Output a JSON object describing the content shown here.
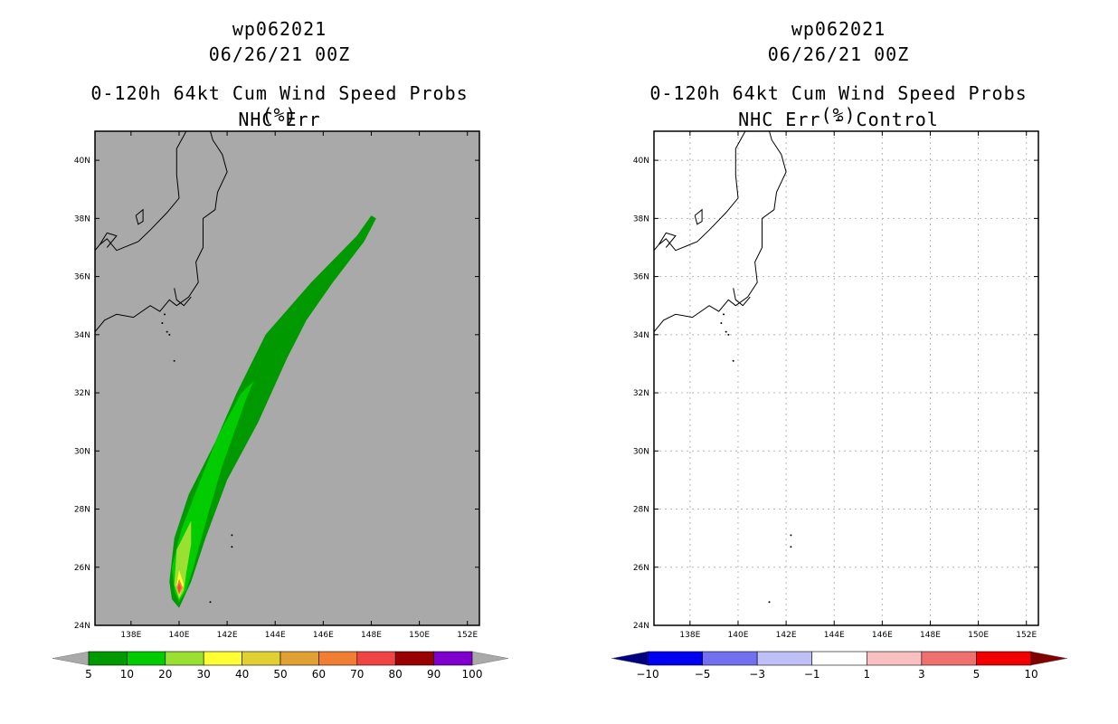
{
  "panels": [
    {
      "title_lines": [
        "wp062021",
        "06/26/21 00Z",
        "0-120h 64kt Cum Wind Speed Probs (%)",
        "NHC Err"
      ],
      "background": "#a9a9a9"
    },
    {
      "title_lines": [
        "wp062021",
        "06/26/21 00Z",
        "0-120h 64kt Cum Wind Speed Probs (%)",
        "NHC Err - Control"
      ],
      "background": "#ffffff"
    }
  ],
  "chart_data": [
    {
      "type": "contour",
      "title": "0-120h 64kt Cum Wind Speed Probs (%)",
      "subtitle": "NHC Err",
      "storm": "wp062021",
      "time": "06/26/21 00Z",
      "lon_range": [
        136.5,
        152.5
      ],
      "lat_range": [
        24,
        41
      ],
      "x_ticks": [
        "138E",
        "140E",
        "142E",
        "144E",
        "146E",
        "148E",
        "150E",
        "152E"
      ],
      "y_ticks": [
        "24N",
        "26N",
        "28N",
        "30N",
        "32N",
        "34N",
        "36N",
        "38N",
        "40N"
      ],
      "grid": false,
      "colorbar": {
        "levels": [
          "5",
          "10",
          "20",
          "30",
          "40",
          "50",
          "60",
          "70",
          "80",
          "90",
          "100"
        ],
        "colors": [
          "#009900",
          "#00cc00",
          "#99e033",
          "#ffff33",
          "#e0d033",
          "#e0a033",
          "#f07f33",
          "#f04444",
          "#990000",
          "#7f00cc"
        ],
        "under": "#a9a9a9",
        "over": "#a9a9a9"
      },
      "contours": [
        {
          "level": 5,
          "color": "#009900",
          "polygon": [
            [
              140.0,
              24.6
            ],
            [
              139.7,
              24.9
            ],
            [
              139.6,
              25.5
            ],
            [
              139.8,
              27.0
            ],
            [
              140.4,
              28.5
            ],
            [
              141.5,
              30.3
            ],
            [
              142.4,
              32.0
            ],
            [
              143.6,
              34.0
            ],
            [
              145.5,
              35.8
            ],
            [
              147.4,
              37.4
            ],
            [
              148.0,
              38.1
            ],
            [
              148.2,
              38.0
            ],
            [
              147.7,
              37.2
            ],
            [
              146.4,
              35.8
            ],
            [
              145.3,
              34.5
            ],
            [
              144.5,
              33.2
            ],
            [
              143.3,
              31.0
            ],
            [
              142.0,
              29.0
            ],
            [
              141.1,
              27.0
            ],
            [
              140.5,
              25.5
            ]
          ]
        },
        {
          "level": 10,
          "color": "#00cc00",
          "polygon": [
            [
              140.0,
              24.8
            ],
            [
              139.8,
              25.2
            ],
            [
              139.7,
              26.0
            ],
            [
              140.1,
              27.3
            ],
            [
              140.8,
              28.8
            ],
            [
              141.6,
              30.5
            ],
            [
              142.6,
              32.0
            ],
            [
              143.1,
              32.4
            ],
            [
              142.8,
              31.8
            ],
            [
              141.8,
              29.5
            ],
            [
              141.2,
              27.8
            ],
            [
              140.6,
              26.0
            ],
            [
              140.3,
              25.2
            ]
          ]
        },
        {
          "level": 20,
          "color": "#99e033",
          "polygon": [
            [
              140.0,
              24.9
            ],
            [
              139.8,
              25.4
            ],
            [
              139.9,
              26.6
            ],
            [
              140.5,
              27.6
            ],
            [
              140.5,
              26.8
            ],
            [
              140.3,
              25.8
            ],
            [
              140.2,
              25.2
            ]
          ]
        },
        {
          "level": 30,
          "color": "#ffff33",
          "polygon": [
            [
              140.0,
              25.0
            ],
            [
              139.9,
              25.4
            ],
            [
              140.0,
              25.9
            ],
            [
              140.2,
              25.4
            ]
          ]
        },
        {
          "level": 60,
          "color": "#f07f33",
          "polygon": [
            [
              140.0,
              25.05
            ],
            [
              139.9,
              25.3
            ],
            [
              140.0,
              25.6
            ],
            [
              140.15,
              25.3
            ]
          ]
        },
        {
          "level": 70,
          "color": "#f04444",
          "polygon": [
            [
              140.0,
              25.1
            ],
            [
              139.95,
              25.3
            ],
            [
              140.0,
              25.45
            ],
            [
              140.08,
              25.3
            ]
          ]
        }
      ]
    },
    {
      "type": "contour",
      "title": "0-120h 64kt Cum Wind Speed Probs (%)",
      "subtitle": "NHC Err - Control",
      "storm": "wp062021",
      "time": "06/26/21 00Z",
      "lon_range": [
        136.5,
        152.5
      ],
      "lat_range": [
        24,
        41
      ],
      "x_ticks": [
        "138E",
        "140E",
        "142E",
        "144E",
        "146E",
        "148E",
        "150E",
        "152E"
      ],
      "y_ticks": [
        "24N",
        "26N",
        "28N",
        "30N",
        "32N",
        "34N",
        "36N",
        "38N",
        "40N"
      ],
      "grid": true,
      "colorbar": {
        "levels": [
          "-10",
          "-5",
          "-3",
          "-1",
          "1",
          "3",
          "5",
          "10"
        ],
        "colors": [
          "#0000f0",
          "#7070f0",
          "#c0c0f8",
          "#ffffff",
          "#f8c0c0",
          "#f07070",
          "#f00000"
        ],
        "under": "#000080",
        "over": "#800000"
      },
      "contours": []
    }
  ]
}
